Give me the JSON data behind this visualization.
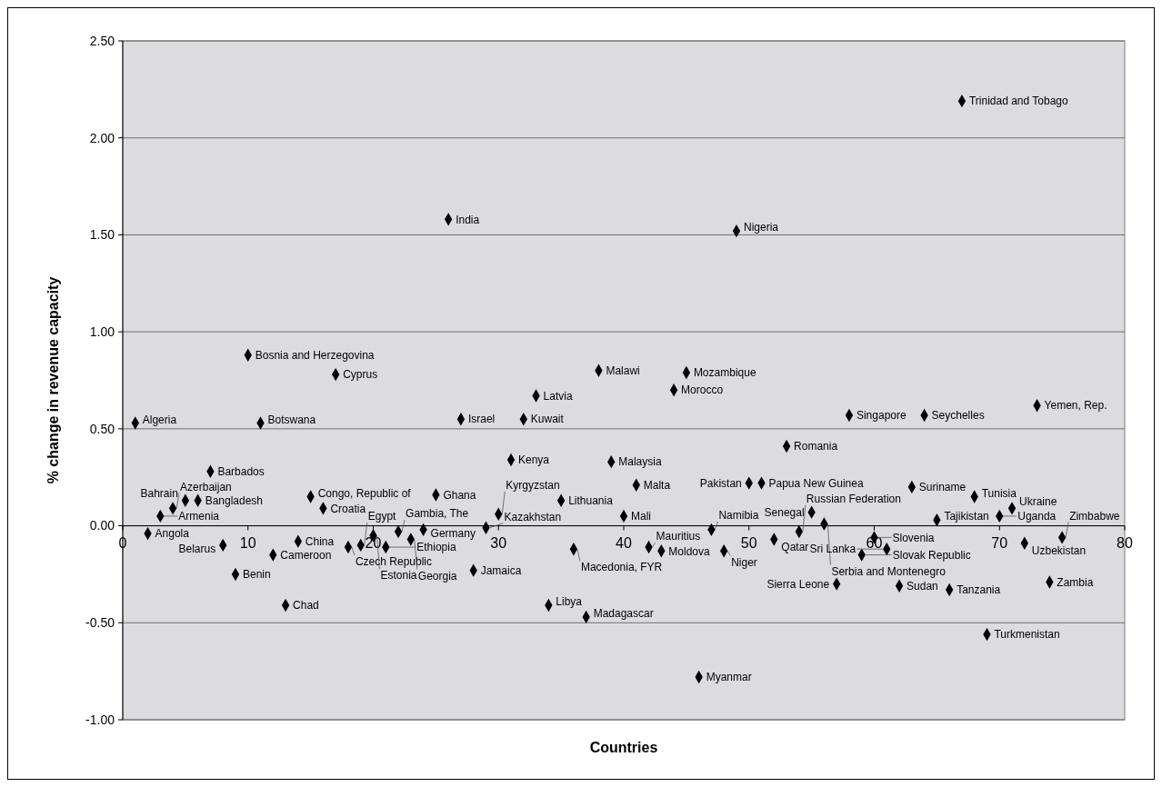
{
  "chart_data": {
    "type": "scatter",
    "xlabel": "Countries",
    "ylabel": "% change in revenue capacity",
    "xlim": [
      0,
      80
    ],
    "xticks": [
      0,
      10,
      20,
      30,
      40,
      50,
      60,
      70,
      80
    ],
    "ylim": [
      -1,
      2.5
    ],
    "yticks": [
      {
        "value": -1,
        "label": "-1.00"
      },
      {
        "value": -0.5,
        "label": "-0.50"
      },
      {
        "value": 0,
        "label": "0.00"
      },
      {
        "value": 0.5,
        "label": "0.50"
      },
      {
        "value": 1,
        "label": "1.00"
      },
      {
        "value": 1.5,
        "label": "1.50"
      },
      {
        "value": 2,
        "label": "2.00"
      },
      {
        "value": 2.5,
        "label": "2.50"
      }
    ],
    "grid": "y",
    "marker": "diamond",
    "series": [
      {
        "color": "#000000",
        "x": [
          1,
          2,
          3,
          4,
          5,
          6,
          7,
          8,
          9,
          10,
          11,
          12,
          13,
          14,
          15,
          16,
          17,
          18,
          19,
          20,
          21,
          22,
          23,
          24,
          25,
          26,
          27,
          28,
          29,
          30,
          31,
          32,
          33,
          34,
          35,
          36,
          37,
          38,
          39,
          40,
          41,
          42,
          43,
          44,
          45,
          46,
          47,
          48,
          49,
          50,
          51,
          52,
          53,
          54,
          55,
          56,
          57,
          58,
          59,
          60,
          61,
          62,
          63,
          64,
          65,
          66,
          67,
          68,
          69,
          70,
          71,
          72,
          73,
          74,
          75
        ],
        "values": [
          0.53,
          -0.04,
          0.05,
          0.09,
          0.13,
          0.13,
          0.28,
          -0.1,
          -0.25,
          0.88,
          0.53,
          -0.15,
          -0.41,
          -0.08,
          0.15,
          0.09,
          0.78,
          -0.11,
          -0.1,
          -0.05,
          -0.11,
          -0.03,
          -0.07,
          -0.02,
          0.16,
          1.58,
          0.55,
          -0.23,
          -0.01,
          0.06,
          0.34,
          0.55,
          0.67,
          -0.41,
          0.13,
          -0.12,
          -0.47,
          0.8,
          0.33,
          0.05,
          0.21,
          -0.11,
          -0.13,
          0.7,
          0.79,
          -0.78,
          -0.02,
          -0.13,
          1.52,
          0.22,
          0.22,
          -0.07,
          0.41,
          -0.03,
          0.07,
          0.01,
          -0.3,
          0.57,
          -0.15,
          -0.06,
          -0.12,
          -0.31,
          0.2,
          0.57,
          0.03,
          -0.33,
          2.19,
          0.15,
          -0.56,
          0.05,
          0.09,
          -0.09,
          0.62,
          -0.29,
          -0.06
        ]
      }
    ],
    "annotations": [
      {
        "text": "Algeria",
        "x": 1,
        "y": 0.53
      },
      {
        "text": "Angola",
        "x": 2,
        "y": -0.04
      },
      {
        "text": "Armenia",
        "x": 3,
        "y": 0.05
      },
      {
        "text": "Azerbaijan",
        "x": 4,
        "y": 0.09
      },
      {
        "text": "Bahrain",
        "x": 5,
        "y": 0.13
      },
      {
        "text": "Bangladesh",
        "x": 6,
        "y": 0.13
      },
      {
        "text": "Barbados",
        "x": 7,
        "y": 0.28
      },
      {
        "text": "Belarus",
        "x": 8,
        "y": -0.1
      },
      {
        "text": "Benin",
        "x": 9,
        "y": -0.25
      },
      {
        "text": "Bosnia and Herzegovina",
        "x": 10,
        "y": 0.88
      },
      {
        "text": "Botswana",
        "x": 11,
        "y": 0.53
      },
      {
        "text": "Cameroon",
        "x": 12,
        "y": -0.15
      },
      {
        "text": "Chad",
        "x": 13,
        "y": -0.41
      },
      {
        "text": "China",
        "x": 14,
        "y": -0.08
      },
      {
        "text": "Congo,  Republic of",
        "x": 15,
        "y": 0.15
      },
      {
        "text": "Croatia",
        "x": 16,
        "y": 0.09
      },
      {
        "text": "Cyprus",
        "x": 17,
        "y": 0.78
      },
      {
        "text": "Czech Republic",
        "x": 18,
        "y": -0.11
      },
      {
        "text": "Egypt",
        "x": 19,
        "y": -0.1
      },
      {
        "text": "Estonia",
        "x": 20,
        "y": -0.05
      },
      {
        "text": "Ethiopia",
        "x": 21,
        "y": -0.11
      },
      {
        "text": "Gambia, The",
        "x": 22,
        "y": -0.03
      },
      {
        "text": "Georgia",
        "x": 23,
        "y": -0.07
      },
      {
        "text": "Germany",
        "x": 24,
        "y": -0.02
      },
      {
        "text": "Ghana",
        "x": 25,
        "y": 0.16
      },
      {
        "text": "India",
        "x": 26,
        "y": 1.58
      },
      {
        "text": "Israel",
        "x": 27,
        "y": 0.55
      },
      {
        "text": "Jamaica",
        "x": 28,
        "y": -0.23
      },
      {
        "text": "Kazakhstan",
        "x": 29,
        "y": -0.01
      },
      {
        "text": "Kyrgyzstan",
        "x": 30,
        "y": 0.06
      },
      {
        "text": "Kenya",
        "x": 31,
        "y": 0.34
      },
      {
        "text": "Kuwait",
        "x": 32,
        "y": 0.55
      },
      {
        "text": "Latvia",
        "x": 33,
        "y": 0.67
      },
      {
        "text": "Libya",
        "x": 34,
        "y": -0.41
      },
      {
        "text": "Lithuania",
        "x": 35,
        "y": 0.13
      },
      {
        "text": "Macedonia, FYR",
        "x": 36,
        "y": -0.12
      },
      {
        "text": "Madagascar",
        "x": 37,
        "y": -0.47
      },
      {
        "text": "Malawi",
        "x": 38,
        "y": 0.8
      },
      {
        "text": "Malaysia",
        "x": 39,
        "y": 0.33
      },
      {
        "text": "Mali",
        "x": 40,
        "y": 0.05
      },
      {
        "text": "Malta",
        "x": 41,
        "y": 0.21
      },
      {
        "text": "Mauritius",
        "x": 42,
        "y": -0.11
      },
      {
        "text": "Moldova",
        "x": 43,
        "y": -0.13
      },
      {
        "text": "Morocco",
        "x": 44,
        "y": 0.7
      },
      {
        "text": "Mozambique",
        "x": 45,
        "y": 0.79
      },
      {
        "text": "Myanmar",
        "x": 46,
        "y": -0.78
      },
      {
        "text": "Namibia",
        "x": 47,
        "y": -0.02
      },
      {
        "text": "Niger",
        "x": 48,
        "y": -0.13
      },
      {
        "text": "Nigeria",
        "x": 49,
        "y": 1.52
      },
      {
        "text": "Pakistan",
        "x": 50,
        "y": 0.22
      },
      {
        "text": "Papua New Guinea",
        "x": 51,
        "y": 0.22
      },
      {
        "text": "Qatar",
        "x": 52,
        "y": -0.07
      },
      {
        "text": "Romania",
        "x": 53,
        "y": 0.41
      },
      {
        "text": "Russian Federation",
        "x": 54,
        "y": -0.03
      },
      {
        "text": "Senegal",
        "x": 55,
        "y": 0.07
      },
      {
        "text": "Serbia and Montenegro",
        "x": 56,
        "y": 0.01
      },
      {
        "text": "Sierra Leone",
        "x": 57,
        "y": -0.3
      },
      {
        "text": "Singapore",
        "x": 58,
        "y": 0.57
      },
      {
        "text": "Slovak Republic",
        "x": 59,
        "y": -0.15
      },
      {
        "text": "Slovenia",
        "x": 60,
        "y": -0.06
      },
      {
        "text": "Sri Lanka",
        "x": 61,
        "y": -0.12
      },
      {
        "text": "Sudan",
        "x": 62,
        "y": -0.31
      },
      {
        "text": "Suriname",
        "x": 63,
        "y": 0.2
      },
      {
        "text": "Seychelles",
        "x": 64,
        "y": 0.57
      },
      {
        "text": "Tajikistan",
        "x": 65,
        "y": 0.03
      },
      {
        "text": "Tanzania",
        "x": 66,
        "y": -0.33
      },
      {
        "text": "Trinidad and Tobago",
        "x": 67,
        "y": 2.19
      },
      {
        "text": "Tunisia",
        "x": 68,
        "y": 0.15
      },
      {
        "text": "Turkmenistan",
        "x": 69,
        "y": -0.56
      },
      {
        "text": "Uganda",
        "x": 70,
        "y": 0.05
      },
      {
        "text": "Ukraine",
        "x": 71,
        "y": 0.09
      },
      {
        "text": "Uzbekistan",
        "x": 72,
        "y": -0.09
      },
      {
        "text": "Yemen, Rep.",
        "x": 73,
        "y": 0.62
      },
      {
        "text": "Zambia",
        "x": 74,
        "y": -0.29
      },
      {
        "text": "Zimbabwe",
        "x": 75,
        "y": -0.06
      }
    ]
  }
}
